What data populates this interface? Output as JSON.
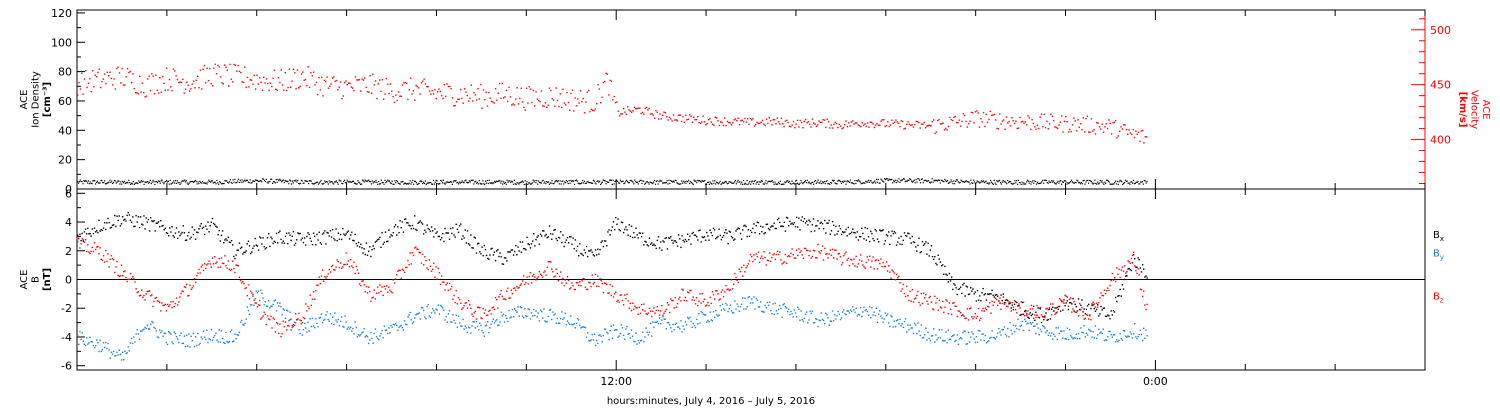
{
  "chart_data": [
    {
      "type": "scatter",
      "panel": "top",
      "ylabel_left": [
        "ACE",
        "Ion Density",
        "[cm⁻³]"
      ],
      "ylabel_right": [
        "ACE",
        "Velocity",
        "[km/s]"
      ],
      "ylim_left": [
        0,
        122
      ],
      "yticks_left": [
        "0",
        "20",
        "40",
        "60",
        "80",
        "100",
        "120"
      ],
      "ylim_right": [
        355,
        518
      ],
      "yticks_right": [
        "400",
        "450",
        "500"
      ],
      "colors": {
        "density": "#000000",
        "velocity": "#ff0000"
      },
      "xlim_hours": [
        0,
        30
      ],
      "series": [
        {
          "axis": "left",
          "x": [
            0,
            1,
            2,
            3,
            4,
            5,
            6,
            7,
            8,
            9,
            10,
            11,
            12,
            13,
            14,
            15,
            16,
            17,
            18,
            19,
            20,
            21,
            22,
            23.8
          ],
          "y": [
            5,
            5,
            5,
            5,
            6,
            5,
            5,
            5,
            5,
            5,
            5,
            5,
            5,
            5,
            5,
            5,
            5,
            5,
            6,
            6,
            5,
            5,
            5,
            5
          ]
        },
        {
          "axis": "right",
          "x": [
            0,
            0.5,
            1,
            1.5,
            2,
            2.5,
            3,
            3.5,
            4,
            4.5,
            5,
            5.5,
            6,
            6.5,
            7,
            7.5,
            8,
            8.5,
            9,
            9.5,
            10,
            10.5,
            11,
            11.5,
            11.8,
            12,
            12.5,
            13,
            13.5,
            14,
            14.5,
            15,
            15.5,
            16,
            16.5,
            17,
            17.5,
            18,
            18.5,
            19,
            19.5,
            20,
            20.5,
            21,
            21.5,
            22,
            22.5,
            23,
            23.5,
            23.8
          ],
          "y": [
            452,
            455,
            458,
            450,
            456,
            453,
            460,
            458,
            455,
            453,
            458,
            450,
            448,
            450,
            445,
            446,
            443,
            442,
            440,
            442,
            438,
            440,
            437,
            435,
            455,
            425,
            428,
            422,
            420,
            418,
            417,
            416,
            417,
            415,
            416,
            414,
            416,
            415,
            414,
            413,
            416,
            420,
            418,
            417,
            416,
            415,
            414,
            412,
            405,
            402
          ]
        }
      ]
    },
    {
      "type": "scatter",
      "panel": "bottom",
      "ylabel_left": [
        "ACE",
        "B",
        "[nT]"
      ],
      "ylim": [
        -6.3,
        6.3
      ],
      "yticks": [
        "-6",
        "-4",
        "-2",
        "0",
        "2",
        "4",
        "6"
      ],
      "zero_line": true,
      "legend": [
        {
          "name": "B",
          "sub": "x",
          "color": "#000000"
        },
        {
          "name": "B",
          "sub": "y",
          "color": "#1a82cf"
        },
        {
          "name": "B",
          "sub": "z",
          "color": "#ff0000"
        }
      ],
      "xlim_hours": [
        0,
        30
      ],
      "series": [
        {
          "name": "Bx",
          "x": [
            0,
            0.5,
            1,
            1.5,
            2,
            2.5,
            3,
            3.5,
            4,
            4.5,
            5,
            5.5,
            6,
            6.5,
            7,
            7.5,
            8,
            8.5,
            9,
            9.5,
            10,
            10.5,
            11,
            11.5,
            12,
            12.5,
            13,
            13.5,
            14,
            14.5,
            15,
            15.5,
            16,
            16.5,
            17,
            17.5,
            18,
            18.5,
            19,
            19.5,
            20,
            20.5,
            21,
            21.5,
            22,
            22.5,
            23,
            23.5,
            23.8
          ],
          "y": [
            3,
            3.8,
            4.3,
            4,
            3.5,
            3.2,
            3.8,
            2,
            2.5,
            3,
            2.8,
            3,
            3.2,
            2,
            3.5,
            4,
            3,
            3.5,
            2,
            1.5,
            2.5,
            3.3,
            2.5,
            1.5,
            4,
            3,
            2.5,
            2.8,
            3.2,
            3,
            3.5,
            3.8,
            4,
            3.8,
            3.5,
            3.2,
            3,
            2.8,
            2,
            -0.5,
            -1,
            -1.2,
            -2,
            -2.5,
            -1.5,
            -2,
            -2.5,
            1.5,
            0.5
          ]
        },
        {
          "name": "By",
          "x": [
            0,
            0.5,
            1,
            1.5,
            2,
            2.5,
            3,
            3.5,
            4,
            4.5,
            5,
            5.5,
            6,
            6.5,
            7,
            7.5,
            8,
            8.5,
            9,
            9.5,
            10,
            10.5,
            11,
            11.5,
            12,
            12.5,
            13,
            13.5,
            14,
            14.5,
            15,
            15.5,
            16,
            16.5,
            17,
            17.5,
            18,
            18.5,
            19,
            19.5,
            20,
            20.5,
            21,
            21.5,
            22,
            22.5,
            23,
            23.5,
            23.8
          ],
          "y": [
            -4,
            -4.5,
            -5.5,
            -3,
            -4,
            -4.2,
            -3.8,
            -4,
            -1,
            -2,
            -3.5,
            -2.5,
            -3,
            -4,
            -3.5,
            -2.5,
            -2,
            -3,
            -3.5,
            -2.5,
            -2.2,
            -2.5,
            -2.8,
            -4.2,
            -3.5,
            -4,
            -3,
            -3.2,
            -2.5,
            -2,
            -1.5,
            -2,
            -2.3,
            -2.8,
            -2.5,
            -2,
            -2.8,
            -3.2,
            -3.8,
            -4,
            -4,
            -3.8,
            -3,
            -3.5,
            -3.8,
            -3.5,
            -4,
            -3.5,
            -3.8
          ]
        },
        {
          "name": "Bz",
          "x": [
            0,
            0.5,
            1,
            1.5,
            2,
            2.5,
            3,
            3.5,
            4,
            4.5,
            5,
            5.5,
            6,
            6.5,
            7,
            7.5,
            8,
            8.5,
            9,
            9.5,
            10,
            10.5,
            11,
            11.5,
            12,
            12.5,
            13,
            13.5,
            14,
            14.5,
            15,
            15.5,
            16,
            16.5,
            17,
            17.5,
            18,
            18.5,
            19,
            19.5,
            20,
            20.5,
            21,
            21.5,
            22,
            22.5,
            23,
            23.5,
            23.8
          ],
          "y": [
            2.5,
            2,
            0.5,
            -1,
            -2,
            -0.5,
            1.5,
            1,
            -2,
            -3.5,
            -2.5,
            0.5,
            1.5,
            -1,
            -0.5,
            2,
            0.5,
            -1.5,
            -2.5,
            -1,
            0,
            1,
            -0.5,
            0,
            -1,
            -2,
            -2.2,
            -1,
            -1.5,
            -0.5,
            1.5,
            1.5,
            1.8,
            2,
            1.5,
            1.3,
            1,
            -1,
            -1.5,
            -2,
            -2.5,
            -1.5,
            -2,
            -2.3,
            -1.5,
            -2.5,
            0,
            1.5,
            -2
          ]
        }
      ]
    }
  ],
  "x_axis": {
    "tick_labels": [
      "12:00",
      "0:00"
    ],
    "tick_hours": [
      12,
      24
    ],
    "xlabel": "hours:minutes, July  4, 2016 – July  5, 2016"
  }
}
